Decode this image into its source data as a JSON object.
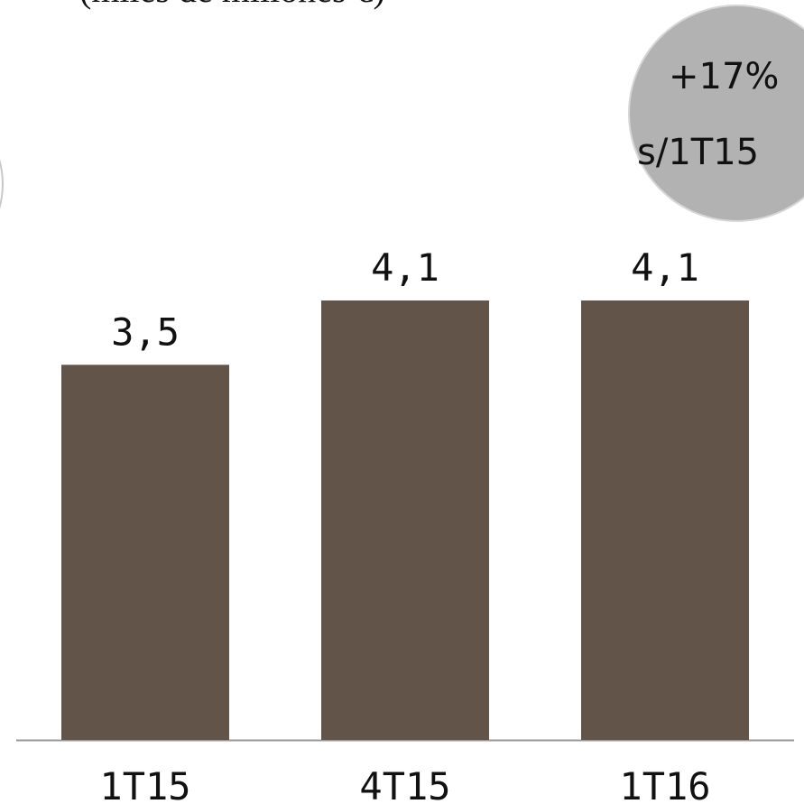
{
  "chart_data": {
    "type": "bar",
    "subtitle": "(miles de millones €)",
    "categories": [
      "1T15",
      "4T15",
      "1T16"
    ],
    "values": [
      3.5,
      4.1,
      4.1
    ],
    "value_labels": [
      "3,5",
      "4,1",
      "4,1"
    ],
    "bar_color": "#625448",
    "axis_color": "#999999",
    "ylim": [
      0,
      4.5
    ],
    "grid": false,
    "legend": "none",
    "annotation": {
      "line1": "+17%",
      "line2": "s/1T15",
      "color": "#b2b2b2"
    }
  }
}
